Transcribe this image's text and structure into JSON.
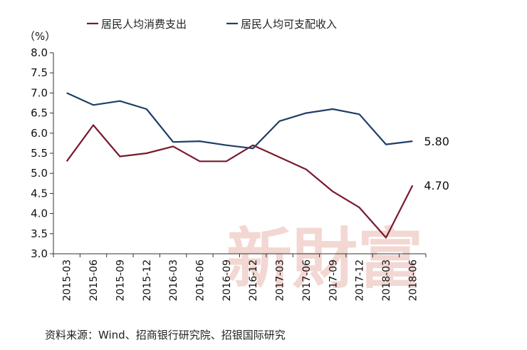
{
  "chart_data": {
    "type": "line",
    "unit_label": "（%）",
    "ylim": [
      3.0,
      8.0
    ],
    "y_ticks": [
      "3.0",
      "3.5",
      "4.0",
      "4.5",
      "5.0",
      "5.5",
      "6.0",
      "6.5",
      "7.0",
      "7.5",
      "8.0"
    ],
    "categories": [
      "2015-03",
      "2015-06",
      "2015-09",
      "2015-12",
      "2016-03",
      "2016-06",
      "2016-09",
      "2016-12",
      "2017-03",
      "2017-06",
      "2017-09",
      "2017-12",
      "2018-03",
      "2018-06"
    ],
    "legend_position": "top",
    "series": [
      {
        "name": "居民人均消费支出",
        "color": "#7a1a2e",
        "values": [
          5.3,
          6.2,
          5.42,
          5.5,
          5.67,
          5.3,
          5.3,
          5.7,
          5.4,
          5.1,
          4.55,
          4.15,
          3.4,
          4.7
        ],
        "end_label": "4.70"
      },
      {
        "name": "居民人均可支配收入",
        "color": "#1f3f66",
        "values": [
          7.0,
          6.7,
          6.8,
          6.6,
          5.78,
          5.8,
          5.7,
          5.62,
          6.3,
          6.5,
          6.6,
          6.47,
          5.72,
          5.8
        ],
        "end_label": "5.80"
      }
    ]
  },
  "watermark": "新財富",
  "source": "资料来源：Wind、招商银行研究院、招银国际研究"
}
